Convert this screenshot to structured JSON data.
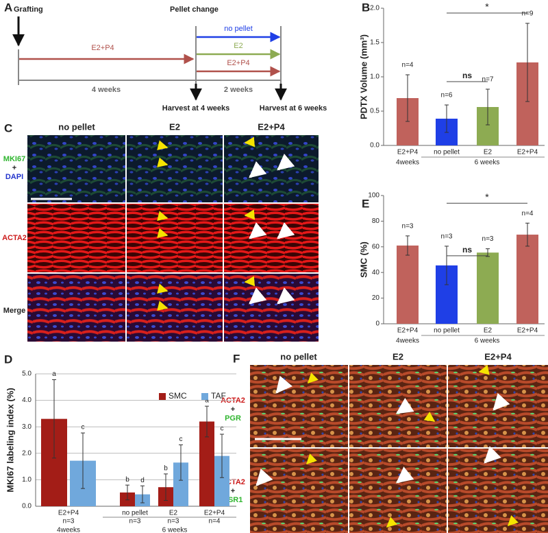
{
  "panel_a": {
    "label": "A",
    "grafting": "Grafting",
    "pellet_change": "Pellet change",
    "first_treatment": "E2+P4",
    "treatments": [
      "no pellet",
      "E2",
      "E2+P4"
    ],
    "period_1": "4 weeks",
    "period_2": "2 weeks",
    "harvest_1": "Harvest at 4 weeks",
    "harvest_2": "Harvest at 6 weeks"
  },
  "panel_c": {
    "label": "C",
    "columns": [
      "no pellet",
      "E2",
      "E2+P4"
    ],
    "rows": [
      [
        "MKI67",
        "+",
        "DAPI"
      ],
      [
        "ACTA2"
      ],
      [
        "Merge"
      ]
    ]
  },
  "panel_f": {
    "label": "F",
    "columns": [
      "no pellet",
      "E2",
      "E2+P4"
    ],
    "rows": [
      [
        "ACTA2",
        "+",
        "PGR"
      ],
      [
        "ACTA2",
        "+",
        "ESR1"
      ]
    ]
  },
  "chart_data": [
    {
      "type": "bar",
      "label": "B",
      "y_label": "PDTX Volume (mm³)",
      "categories": [
        "E2+P4",
        "no pellet",
        "E2",
        "E2+P4"
      ],
      "group_labels": [
        "4weeks",
        "6 weeks"
      ],
      "values": [
        0.69,
        0.39,
        0.56,
        1.21
      ],
      "errors": [
        0.34,
        0.2,
        0.26,
        0.57
      ],
      "colors": [
        "#c0625c",
        "#1f3fe6",
        "#8dab52",
        "#c0625c"
      ],
      "n_labels": [
        "n=4",
        "n=6",
        "n=7",
        "n=9"
      ],
      "annotations": [
        "ns",
        "*"
      ],
      "ylim": [
        0,
        2
      ],
      "yticks": [
        {
          "value": 0,
          "label": "0.0"
        },
        {
          "value": 0.5,
          "label": "0.5"
        },
        {
          "value": 1,
          "label": "1.0"
        },
        {
          "value": 1.5,
          "label": "1.5"
        },
        {
          "value": 2,
          "label": "2.0"
        }
      ],
      "grid": false
    },
    {
      "type": "bar",
      "label": "E",
      "y_label": "SMC (%)",
      "categories": [
        "E2+P4",
        "no pellet",
        "E2",
        "E2+P4"
      ],
      "group_labels": [
        "4weeks",
        "6 weeks"
      ],
      "values": [
        61,
        45.5,
        55.5,
        69.5
      ],
      "errors": [
        7.5,
        15,
        3,
        9
      ],
      "colors": [
        "#c0625c",
        "#1f3fe6",
        "#8dab52",
        "#c0625c"
      ],
      "n_labels": [
        "n=3",
        "n=3",
        "n=3",
        "n=4"
      ],
      "annotations": [
        "ns",
        "*"
      ],
      "ylim": [
        0,
        100
      ],
      "yticks": [
        0,
        20,
        40,
        60,
        80,
        100
      ],
      "grid": false
    },
    {
      "type": "bar",
      "label": "D",
      "y_label": "MKI67 labeling index (%)",
      "categories": [
        "E2+P4",
        "no pellet",
        "E2",
        "E2+P4"
      ],
      "group_labels": [
        "4weeks",
        "6 weeks"
      ],
      "n_labels": [
        "n=3",
        "n=3",
        "n=3",
        "n=4"
      ],
      "series": [
        {
          "name": "SMC",
          "color": "#a31d17",
          "values": [
            3.3,
            0.52,
            0.72,
            3.2
          ],
          "errors": [
            1.48,
            0.28,
            0.5,
            0.58
          ],
          "letters": [
            "a",
            "b",
            "b",
            "a"
          ]
        },
        {
          "name": "TAF",
          "color": "#70a8dc",
          "values": [
            1.72,
            0.45,
            1.65,
            1.9
          ],
          "errors": [
            1.05,
            0.32,
            0.67,
            0.82
          ],
          "letters": [
            "c",
            "d",
            "c",
            "c"
          ]
        }
      ],
      "ylim": [
        0,
        5
      ],
      "yticks": [
        {
          "value": 0,
          "label": "0.0"
        },
        {
          "value": 1,
          "label": "1.0"
        },
        {
          "value": 2,
          "label": "2.0"
        },
        {
          "value": 3,
          "label": "3.0"
        },
        {
          "value": 4,
          "label": "4.0"
        },
        {
          "value": 5,
          "label": "5.0"
        }
      ],
      "grid": true
    }
  ]
}
